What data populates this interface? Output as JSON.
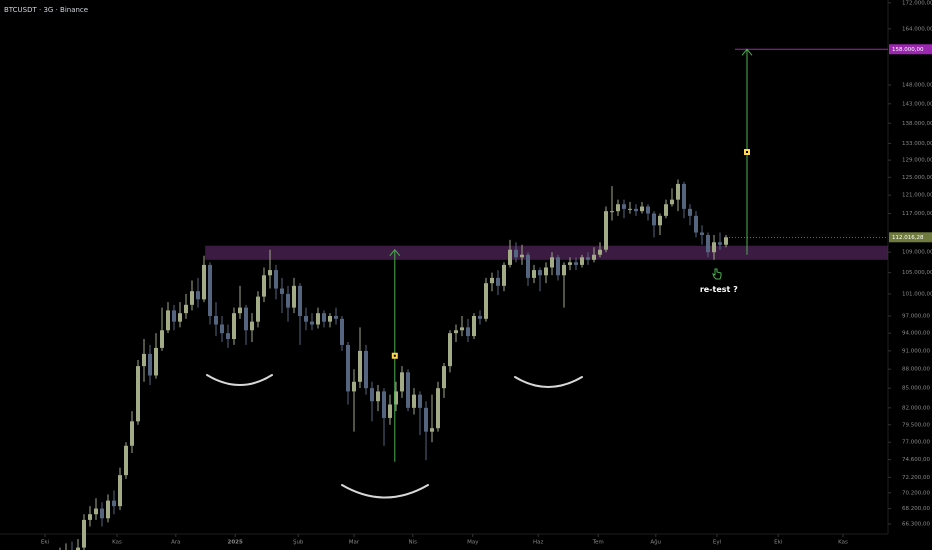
{
  "chart_data": {
    "type": "candlestick",
    "title": "BTCUSDT · 3G · Binance",
    "log_scale": true,
    "ylim": [
      65100,
      172900
    ],
    "xlim": [
      -7,
      141
    ],
    "yticks": [
      {
        "value": 172000,
        "label": "172.000,00"
      },
      {
        "value": 164000,
        "label": "164.000,00"
      },
      {
        "value": 148000,
        "label": "148.000,00"
      },
      {
        "value": 143000,
        "label": "143.000,00"
      },
      {
        "value": 138000,
        "label": "138.000,00"
      },
      {
        "value": 133000,
        "label": "133.000,00"
      },
      {
        "value": 129000,
        "label": "129.000,00"
      },
      {
        "value": 125000,
        "label": "125.000,00"
      },
      {
        "value": 121000,
        "label": "121.000,00"
      },
      {
        "value": 117000,
        "label": "117.000,00"
      },
      {
        "value": 109000,
        "label": "109.000,00"
      },
      {
        "value": 105000,
        "label": "105.000,00"
      },
      {
        "value": 101000,
        "label": "101.000,00"
      },
      {
        "value": 97000,
        "label": "97.000,00"
      },
      {
        "value": 94000,
        "label": "94.000,00"
      },
      {
        "value": 91000,
        "label": "91.000,00"
      },
      {
        "value": 88000,
        "label": "88.000,00"
      },
      {
        "value": 85000,
        "label": "85.000,00"
      },
      {
        "value": 82000,
        "label": "82.000,00"
      },
      {
        "value": 79500,
        "label": "79.500,00"
      },
      {
        "value": 77000,
        "label": "77.000,00"
      },
      {
        "value": 74600,
        "label": "74.600,00"
      },
      {
        "value": 72200,
        "label": "72.200,00"
      },
      {
        "value": 70200,
        "label": "70.200,00"
      },
      {
        "value": 68200,
        "label": "68.200,00"
      },
      {
        "value": 66300,
        "label": "66.300,00"
      }
    ],
    "xticks": [
      {
        "value": 0.5,
        "label": "Eki"
      },
      {
        "value": 12.5,
        "label": "Kas"
      },
      {
        "value": 22.3,
        "label": "Ara"
      },
      {
        "value": 32.2,
        "label": "2025"
      },
      {
        "value": 42.7,
        "label": "Şub"
      },
      {
        "value": 52,
        "label": "Mar"
      },
      {
        "value": 61.8,
        "label": "Nis"
      },
      {
        "value": 71.8,
        "label": "May"
      },
      {
        "value": 82.7,
        "label": "Haz"
      },
      {
        "value": 92.7,
        "label": "Tem"
      },
      {
        "value": 102.3,
        "label": "Ağu"
      },
      {
        "value": 112.5,
        "label": "Eyl"
      },
      {
        "value": 122.7,
        "label": "Eki"
      },
      {
        "value": 133.5,
        "label": "Kas"
      }
    ],
    "up_color": "#a3aa86",
    "down_color": "#56657f",
    "ohlc": [
      [
        62000,
        63000,
        60500,
        61500
      ],
      [
        61500,
        63200,
        60800,
        62500
      ],
      [
        62500,
        63000,
        59900,
        60800
      ],
      [
        60800,
        63500,
        60200,
        62800
      ],
      [
        62800,
        64000,
        62000,
        63200
      ],
      [
        63200,
        64200,
        61600,
        62200
      ],
      [
        62200,
        64500,
        61800,
        63500
      ],
      [
        63500,
        67500,
        63000,
        66800
      ],
      [
        66800,
        68500,
        66000,
        67500
      ],
      [
        67500,
        69500,
        66800,
        68200
      ],
      [
        68200,
        69000,
        66000,
        67000
      ],
      [
        67000,
        70000,
        66500,
        69200
      ],
      [
        69200,
        70500,
        67500,
        68500
      ],
      [
        68500,
        73500,
        68000,
        72500
      ],
      [
        72500,
        77000,
        72000,
        76500
      ],
      [
        76500,
        81500,
        75500,
        80000
      ],
      [
        80000,
        89500,
        79500,
        88500
      ],
      [
        88500,
        93000,
        86000,
        90500
      ],
      [
        90500,
        92000,
        85500,
        87000
      ],
      [
        87000,
        94000,
        86500,
        91500
      ],
      [
        91500,
        98500,
        91000,
        94500
      ],
      [
        94500,
        99500,
        94000,
        98000
      ],
      [
        98000,
        99000,
        94500,
        96000
      ],
      [
        96000,
        99500,
        95000,
        97500
      ],
      [
        97500,
        101000,
        96500,
        99000
      ],
      [
        99000,
        103500,
        98000,
        101500
      ],
      [
        101500,
        104000,
        98500,
        100000
      ],
      [
        100000,
        108300,
        99500,
        106500
      ],
      [
        106500,
        107000,
        95500,
        97000
      ],
      [
        97000,
        99500,
        93500,
        95500
      ],
      [
        95500,
        97000,
        92500,
        94000
      ],
      [
        94000,
        95500,
        91500,
        93000
      ],
      [
        93000,
        98500,
        92000,
        97500
      ],
      [
        97500,
        102500,
        96500,
        98500
      ],
      [
        98500,
        99000,
        92000,
        94500
      ],
      [
        94500,
        97500,
        92500,
        96000
      ],
      [
        96000,
        101500,
        95000,
        100500
      ],
      [
        100500,
        106000,
        99500,
        104500
      ],
      [
        104500,
        109500,
        102000,
        105500
      ],
      [
        105500,
        106500,
        100000,
        102000
      ],
      [
        102000,
        104000,
        97500,
        101000
      ],
      [
        101000,
        102500,
        96000,
        98500
      ],
      [
        98500,
        104000,
        97500,
        102500
      ],
      [
        102500,
        103000,
        92000,
        97000
      ],
      [
        97000,
        98500,
        94500,
        96000
      ],
      [
        96000,
        97500,
        94500,
        95500
      ],
      [
        95500,
        98500,
        94800,
        97500
      ],
      [
        97500,
        98000,
        95000,
        96000
      ],
      [
        96000,
        97500,
        95000,
        97000
      ],
      [
        97000,
        98500,
        95500,
        96500
      ],
      [
        96500,
        97000,
        91000,
        92000
      ],
      [
        92000,
        92500,
        82500,
        84500
      ],
      [
        84500,
        88000,
        78500,
        86000
      ],
      [
        86000,
        95000,
        85000,
        91000
      ],
      [
        91000,
        92000,
        84000,
        85000
      ],
      [
        85000,
        86000,
        80000,
        83000
      ],
      [
        83000,
        85500,
        81500,
        84500
      ],
      [
        84500,
        85000,
        76500,
        80500
      ],
      [
        80500,
        84000,
        79500,
        82500
      ],
      [
        82500,
        86000,
        81500,
        84500
      ],
      [
        84500,
        88500,
        83500,
        87500
      ],
      [
        87500,
        88000,
        81500,
        82000
      ],
      [
        82000,
        85000,
        81000,
        84000
      ],
      [
        84000,
        84500,
        78000,
        82000
      ],
      [
        82000,
        83000,
        74500,
        78500
      ],
      [
        78500,
        84000,
        77000,
        79000
      ],
      [
        79000,
        86000,
        78500,
        85000
      ],
      [
        85000,
        89000,
        83500,
        88500
      ],
      [
        88500,
        94500,
        87500,
        94000
      ],
      [
        94000,
        95500,
        92500,
        94500
      ],
      [
        94500,
        97000,
        93500,
        95000
      ],
      [
        95000,
        96500,
        92500,
        93500
      ],
      [
        93500,
        97500,
        93000,
        97000
      ],
      [
        97000,
        98000,
        95500,
        96500
      ],
      [
        96500,
        104000,
        96000,
        103000
      ],
      [
        103000,
        105000,
        101500,
        104000
      ],
      [
        104000,
        105500,
        100800,
        102500
      ],
      [
        102500,
        107000,
        101500,
        106500
      ],
      [
        106500,
        111500,
        106000,
        109500
      ],
      [
        109500,
        111000,
        107000,
        108000
      ],
      [
        108000,
        110500,
        106500,
        108500
      ],
      [
        108500,
        109000,
        102500,
        104000
      ],
      [
        104000,
        106500,
        103000,
        105500
      ],
      [
        105500,
        106000,
        101500,
        104500
      ],
      [
        104500,
        107000,
        103000,
        106000
      ],
      [
        106000,
        109000,
        104500,
        108000
      ],
      [
        108000,
        108500,
        103500,
        104500
      ],
      [
        104500,
        107000,
        98500,
        106500
      ],
      [
        106500,
        108000,
        105500,
        107000
      ],
      [
        107000,
        108000,
        105500,
        106500
      ],
      [
        106500,
        108500,
        106000,
        108000
      ],
      [
        108000,
        109000,
        106500,
        107500
      ],
      [
        107500,
        110000,
        107000,
        108500
      ],
      [
        108500,
        111000,
        108000,
        109500
      ],
      [
        109500,
        118500,
        109000,
        117500
      ],
      [
        117500,
        123000,
        115500,
        117500
      ],
      [
        117500,
        120000,
        116500,
        119000
      ],
      [
        119000,
        120000,
        116000,
        118000
      ],
      [
        118000,
        119500,
        117000,
        118000
      ],
      [
        118000,
        119000,
        116500,
        117500
      ],
      [
        117500,
        119500,
        117000,
        118500
      ],
      [
        118500,
        119000,
        115500,
        117000
      ],
      [
        117000,
        117500,
        112000,
        114500
      ],
      [
        114500,
        117000,
        112500,
        116500
      ],
      [
        116500,
        120000,
        116000,
        119000
      ],
      [
        119000,
        122500,
        118500,
        120000
      ],
      [
        120000,
        124500,
        117500,
        123500
      ],
      [
        123500,
        124000,
        116000,
        118000
      ],
      [
        118000,
        119000,
        114500,
        116500
      ],
      [
        116500,
        117500,
        112000,
        113000
      ],
      [
        113000,
        114500,
        110500,
        112500
      ],
      [
        112500,
        113000,
        108000,
        109000
      ],
      [
        109000,
        112500,
        107500,
        111000
      ],
      [
        111000,
        113000,
        109500,
        110500
      ],
      [
        110500,
        112500,
        110000,
        112016.28
      ]
    ],
    "last_price": {
      "value": 112016.28,
      "label": "112.016,28"
    },
    "target": {
      "value": 158000,
      "label": "158.000,00",
      "start": 115.5
    },
    "zone": {
      "low": 107500,
      "high": 110300,
      "start": 27.2
    },
    "measures": [
      {
        "x": 58.8,
        "from": 74300,
        "to": 109500
      },
      {
        "x": 117.5,
        "from": 108500,
        "to": 158000
      }
    ],
    "annotation": {
      "text": "re-test ?",
      "x": 112.8,
      "price": 101800
    }
  }
}
